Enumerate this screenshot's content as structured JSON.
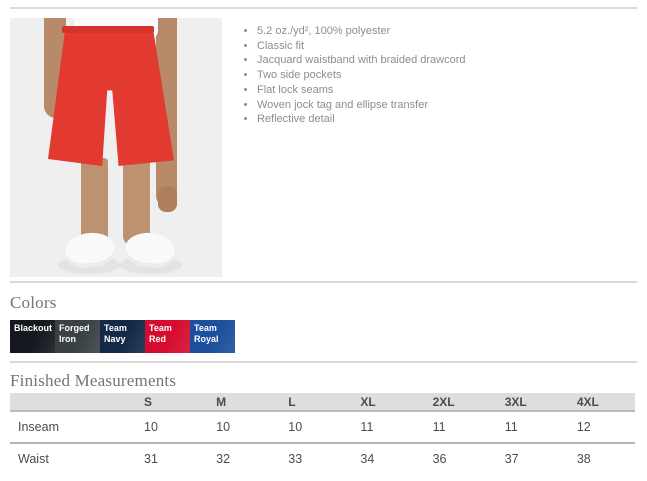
{
  "product": {
    "image_alt": "Model wearing red athletic shorts with white tee and white shoes",
    "features": [
      "5.2 oz./yd², 100% polyester",
      "Classic fit",
      "Jacquard waistband with braided drawcord",
      "Two side pockets",
      "Flat lock seams",
      "Woven jock tag and ellipse transfer",
      "Reflective detail"
    ]
  },
  "colors_section": {
    "heading": "Colors",
    "swatches": [
      {
        "name": "Blackout",
        "hex": "#14171e"
      },
      {
        "name": "Forged Iron",
        "hex": "#3a4144"
      },
      {
        "name": "Team Navy",
        "hex": "#132946"
      },
      {
        "name": "Team Red",
        "hex": "#d50c2f"
      },
      {
        "name": "Team Royal",
        "hex": "#1c4f9c"
      }
    ]
  },
  "measurements_section": {
    "heading": "Finished Measurements",
    "columns": [
      "S",
      "M",
      "L",
      "XL",
      "2XL",
      "3XL",
      "4XL"
    ],
    "rows": [
      {
        "label": "Inseam",
        "values": [
          "10",
          "10",
          "10",
          "11",
          "11",
          "11",
          "12"
        ]
      },
      {
        "label": "Waist",
        "values": [
          "31",
          "32",
          "33",
          "34",
          "36",
          "37",
          "38"
        ]
      }
    ]
  }
}
